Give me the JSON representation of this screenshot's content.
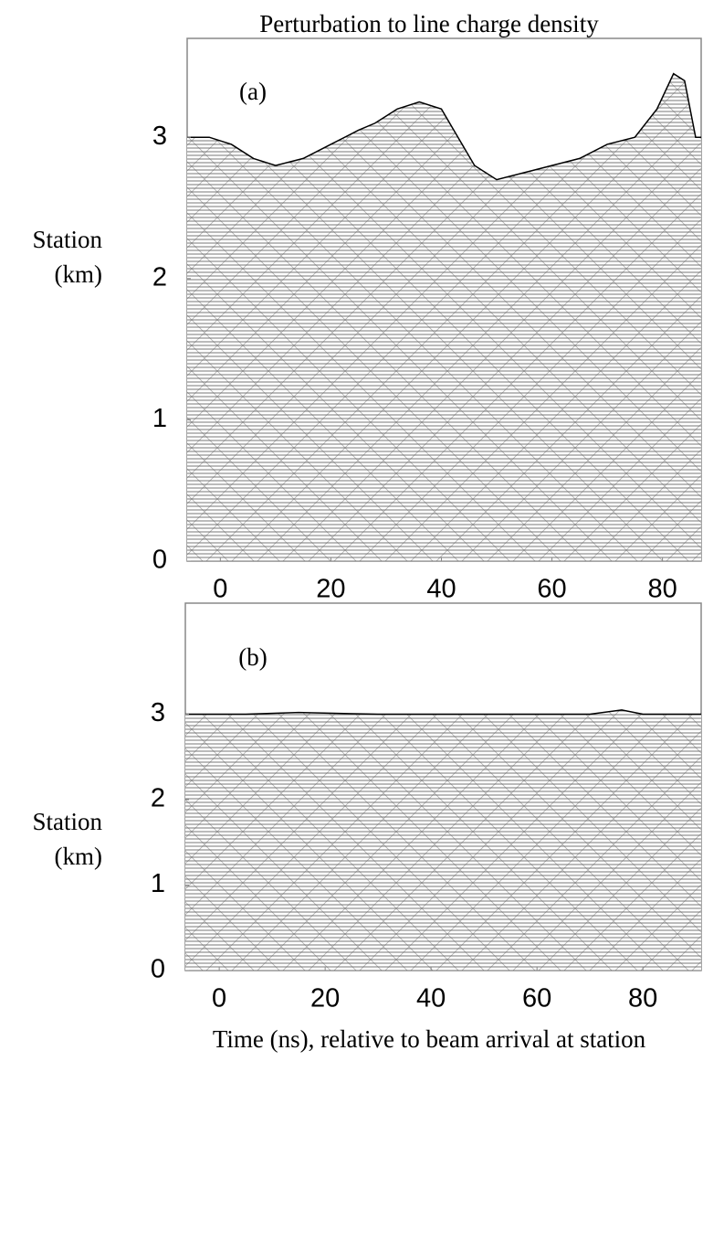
{
  "chart_data": [
    {
      "type": "waterfall",
      "title": "Perturbation to line charge density",
      "panel_label": "(a)",
      "ylabel": [
        "Station",
        "(km)"
      ],
      "xlim": [
        -6,
        87
      ],
      "ylim": [
        0,
        3.7
      ],
      "xticks": [
        0,
        20,
        40,
        60,
        80
      ],
      "yticks": [
        0,
        1,
        2,
        3
      ],
      "series": [
        {
          "color": "#000000",
          "x": [
            -6,
            -2,
            2,
            6,
            10,
            15,
            20,
            25,
            28,
            32,
            36,
            40,
            43,
            46,
            50,
            55,
            60,
            65,
            70,
            75,
            79,
            82,
            84,
            86,
            87
          ],
          "values": [
            3.0,
            3.0,
            2.95,
            2.85,
            2.8,
            2.85,
            2.95,
            3.05,
            3.1,
            3.2,
            3.25,
            3.2,
            3.0,
            2.8,
            2.7,
            2.75,
            2.8,
            2.85,
            2.95,
            3.0,
            3.2,
            3.45,
            3.4,
            3.0,
            3.0
          ]
        }
      ]
    },
    {
      "type": "waterfall",
      "panel_label": "(b)",
      "ylabel": [
        "Station",
        "(km)"
      ],
      "xlabel": "Time (ns), relative to beam arrival at station",
      "xlim": [
        -6.4,
        91
      ],
      "ylim": [
        0,
        4.3
      ],
      "xticks": [
        0,
        20,
        40,
        60,
        80
      ],
      "yticks": [
        0,
        1,
        2,
        3
      ],
      "series": [
        {
          "color": "#000000",
          "x": [
            -6.4,
            5,
            15,
            30,
            45,
            60,
            70,
            76,
            80,
            91
          ],
          "values": [
            3.0,
            3.0,
            3.02,
            3.0,
            3.0,
            3.0,
            3.0,
            3.05,
            3.0,
            3.0
          ]
        }
      ]
    }
  ]
}
